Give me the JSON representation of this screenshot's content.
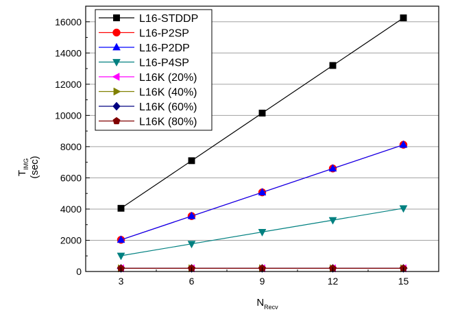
{
  "chart_data": {
    "type": "line",
    "xlabel": "N",
    "xlabel_sub": "Recv",
    "ylabel": "T",
    "ylabel_sub": "IMG",
    "ylabel_unit": "(sec)",
    "x": [
      3,
      6,
      9,
      12,
      15
    ],
    "xlim": [
      1.5,
      16.5
    ],
    "ylim": [
      0,
      17000
    ],
    "x_ticks": [
      3,
      6,
      9,
      12,
      15
    ],
    "y_ticks": [
      0,
      2000,
      4000,
      6000,
      8000,
      10000,
      12000,
      14000,
      16000
    ],
    "grid": "horizontal",
    "legend_position": "top-left",
    "series": [
      {
        "name": "L16-STDDP",
        "color": "#000000",
        "marker": "square",
        "values": [
          4050,
          7100,
          10150,
          13200,
          16250
        ]
      },
      {
        "name": "L16-P2SP",
        "color": "#ff0000",
        "marker": "circle",
        "values": [
          2030,
          3550,
          5070,
          6600,
          8120
        ]
      },
      {
        "name": "L16-P2DP",
        "color": "#0000ff",
        "marker": "triangle-up",
        "values": [
          2030,
          3550,
          5070,
          6600,
          8120
        ]
      },
      {
        "name": "L16-P4SP",
        "color": "#008080",
        "marker": "triangle-down",
        "values": [
          1010,
          1770,
          2530,
          3290,
          4050
        ]
      },
      {
        "name": "L16K (20%)",
        "color": "#ff00ff",
        "marker": "triangle-left",
        "values": [
          200,
          200,
          200,
          200,
          200
        ]
      },
      {
        "name": "L16K (40%)",
        "color": "#808000",
        "marker": "triangle-right",
        "values": [
          200,
          200,
          200,
          200,
          200
        ]
      },
      {
        "name": "L16K (60%)",
        "color": "#000080",
        "marker": "diamond",
        "values": [
          200,
          200,
          200,
          200,
          200
        ]
      },
      {
        "name": "L16K (80%)",
        "color": "#800000",
        "marker": "pentagon",
        "values": [
          200,
          200,
          200,
          200,
          200
        ]
      }
    ]
  }
}
